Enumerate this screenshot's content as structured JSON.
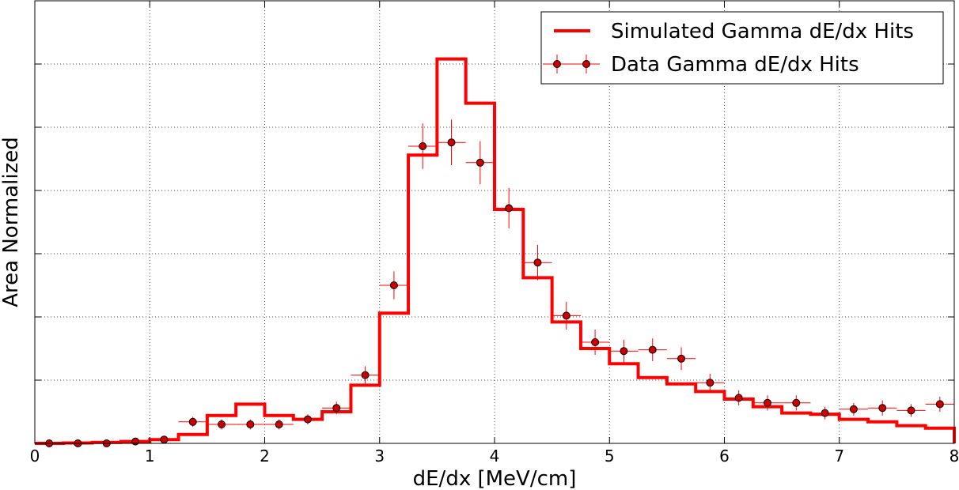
{
  "chart_data": {
    "type": "histogram",
    "xlabel": "dE/dx [MeV/cm]",
    "ylabel": "Area Normalized",
    "xlim": [
      0,
      8
    ],
    "ylim": [
      0,
      0.35
    ],
    "x_ticks": [
      0,
      1,
      2,
      3,
      4,
      5,
      6,
      7,
      8
    ],
    "y_gridlines": [
      0.05,
      0.1,
      0.15,
      0.2,
      0.25,
      0.3
    ],
    "y_tick_labels_shown": false,
    "grid": true,
    "legend_position": "top-right",
    "bin_edges": [
      0,
      0.25,
      0.5,
      0.75,
      1.0,
      1.25,
      1.5,
      1.75,
      2.0,
      2.25,
      2.5,
      2.75,
      3.0,
      3.25,
      3.5,
      3.75,
      4.0,
      4.25,
      4.5,
      4.75,
      5.0,
      5.25,
      5.5,
      5.75,
      6.0,
      6.25,
      6.5,
      6.75,
      7.0,
      7.25,
      7.5,
      7.75,
      8.0
    ],
    "series": [
      {
        "name": "Simulated Gamma dE/dx Hits",
        "style": "step",
        "color": "#ff0000",
        "values": [
          0.0,
          0.0003,
          0.0008,
          0.0015,
          0.003,
          0.007,
          0.022,
          0.031,
          0.022,
          0.019,
          0.025,
          0.046,
          0.103,
          0.228,
          0.304,
          0.269,
          0.185,
          0.131,
          0.096,
          0.075,
          0.063,
          0.052,
          0.047,
          0.041,
          0.035,
          0.029,
          0.024,
          0.023,
          0.019,
          0.017,
          0.014,
          0.012
        ]
      },
      {
        "name": "Data Gamma dE/dx Hits",
        "style": "errorbar",
        "color": "#ff0000",
        "marker_fill": "#cc0000",
        "x": [
          0.125,
          0.375,
          0.625,
          0.875,
          1.125,
          1.375,
          1.625,
          1.875,
          2.125,
          2.375,
          2.625,
          2.875,
          3.125,
          3.375,
          3.625,
          3.875,
          4.125,
          4.375,
          4.625,
          4.875,
          5.125,
          5.375,
          5.625,
          5.875,
          6.125,
          6.375,
          6.625,
          6.875,
          7.125,
          7.375,
          7.625,
          7.875
        ],
        "y": [
          0.0,
          0.0,
          0.0,
          0.0015,
          0.003,
          0.017,
          0.015,
          0.015,
          0.015,
          0.019,
          0.028,
          0.054,
          0.125,
          0.235,
          0.238,
          0.222,
          0.186,
          0.143,
          0.101,
          0.08,
          0.073,
          0.074,
          0.067,
          0.048,
          0.036,
          0.032,
          0.032,
          0.024,
          0.027,
          0.028,
          0.026,
          0.031
        ],
        "yerr": [
          0.0005,
          0.0005,
          0.0005,
          0.001,
          0.002,
          0.004,
          0.004,
          0.004,
          0.004,
          0.004,
          0.005,
          0.007,
          0.011,
          0.018,
          0.018,
          0.017,
          0.016,
          0.014,
          0.011,
          0.01,
          0.009,
          0.009,
          0.009,
          0.007,
          0.006,
          0.006,
          0.006,
          0.005,
          0.005,
          0.006,
          0.005,
          0.006
        ]
      }
    ]
  }
}
